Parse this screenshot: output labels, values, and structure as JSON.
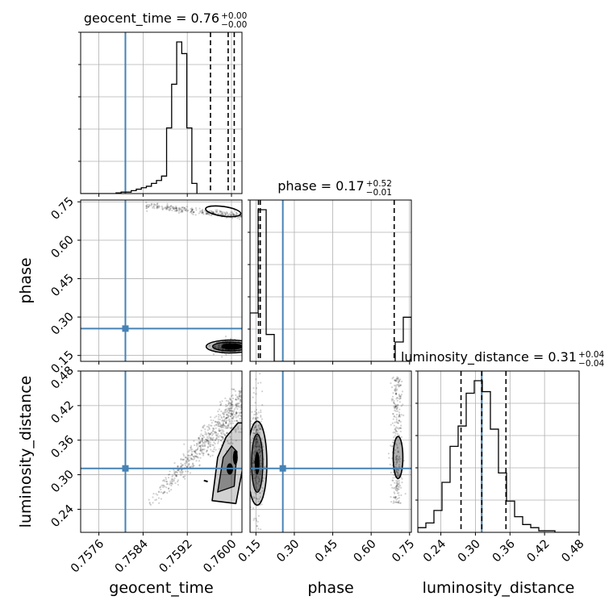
{
  "chart_data": {
    "type": "corner",
    "parameters": [
      "geocent_time",
      "phase",
      "luminosity_distance"
    ],
    "axis_labels": {
      "geocent_time": "geocent_time",
      "phase": "phase",
      "luminosity_distance": "luminosity_distance"
    },
    "ranges": {
      "geocent_time": [
        0.75727,
        0.76019
      ],
      "phase": [
        0.127,
        0.757
      ],
      "luminosity_distance": [
        0.2,
        0.48
      ]
    },
    "ticks": {
      "geocent_time": {
        "values": [
          0.7576,
          0.7584,
          0.7592,
          0.76
        ],
        "labels": [
          "0.7576",
          "0.7584",
          "0.7592",
          "0.7600"
        ]
      },
      "phase": {
        "values": [
          0.15,
          0.3,
          0.45,
          0.6,
          0.75
        ],
        "labels": [
          "0.15",
          "0.30",
          "0.45",
          "0.60",
          "0.75"
        ]
      },
      "luminosity_distance": {
        "values": [
          0.24,
          0.3,
          0.36,
          0.42,
          0.48
        ],
        "labels": [
          "0.24",
          "0.30",
          "0.36",
          "0.42",
          "0.48"
        ]
      }
    },
    "truths": {
      "geocent_time": 0.75808,
      "phase": 0.255,
      "luminosity_distance": 0.311
    },
    "titles": [
      {
        "param": "geocent_time",
        "text": "geocent_time = 0.76",
        "plus": "+0.00",
        "minus": "−0.00"
      },
      {
        "param": "phase",
        "text": "phase = 0.17",
        "plus": "+0.52",
        "minus": "−0.01"
      },
      {
        "param": "luminosity_distance",
        "text": "luminosity_distance = 0.31",
        "plus": "+0.04",
        "minus": "−0.04"
      }
    ],
    "quantiles": {
      "geocent_time": [
        0.75962,
        0.75994,
        0.76005
      ],
      "phase": [
        0.16,
        0.167,
        0.69
      ],
      "luminosity_distance": [
        0.275,
        0.311,
        0.353
      ]
    },
    "histograms": {
      "geocent_time": {
        "edges_start": 0.75727,
        "bin_width": 9.15e-05,
        "counts": [
          0,
          0,
          0,
          0,
          0,
          0,
          0,
          0.5,
          1,
          1,
          2,
          3,
          4,
          5,
          7,
          9,
          12,
          45,
          75,
          104,
          96,
          45,
          7
        ]
      },
      "phase": {
        "edges_start": 0.127,
        "bin_width": 0.0315,
        "counts": [
          45,
          141,
          25,
          0,
          0,
          0,
          0,
          0,
          0,
          0,
          0,
          0,
          0,
          0,
          0,
          0,
          0,
          0,
          18,
          41
        ]
      },
      "luminosity_distance": {
        "edges_start": 0.2,
        "bin_width": 0.014,
        "counts": [
          3,
          6,
          14,
          32,
          55,
          68,
          89,
          97,
          90,
          66,
          38,
          20,
          10,
          5,
          3,
          1,
          1,
          0,
          0,
          0
        ]
      }
    },
    "grid": true,
    "truth_color": "#4682b4",
    "contour_color": "#000000"
  }
}
